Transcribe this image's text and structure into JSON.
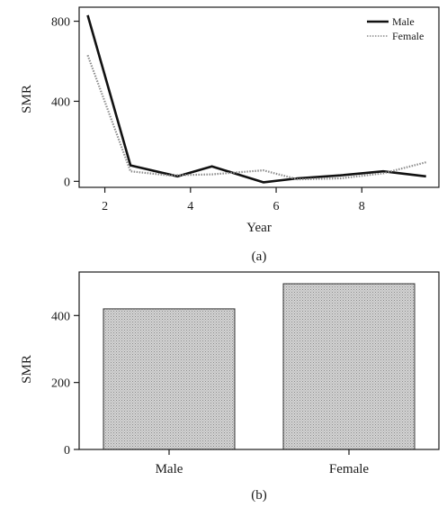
{
  "chart_data": [
    {
      "type": "line",
      "caption": "(a)",
      "xlabel": "Year",
      "ylabel": "SMR",
      "xlim": [
        1.4,
        9.8
      ],
      "ylim": [
        -30,
        870
      ],
      "xticks": [
        2,
        4,
        6,
        8
      ],
      "yticks": [
        0,
        400,
        800
      ],
      "grid": false,
      "legend_position": "top-right",
      "series": [
        {
          "name": "Male",
          "color": "#111111",
          "style": "solid",
          "x": [
            1.6,
            2.6,
            3.7,
            4.5,
            5.7,
            6.5,
            7.5,
            8.5,
            9.5
          ],
          "y": [
            830,
            80,
            25,
            75,
            -5,
            15,
            30,
            50,
            25
          ]
        },
        {
          "name": "Female",
          "color": "#8c8c8c",
          "style": "dotted",
          "x": [
            1.6,
            2.6,
            3.5,
            4.5,
            5.7,
            6.5,
            7.5,
            8.5,
            9.5
          ],
          "y": [
            630,
            50,
            30,
            35,
            55,
            10,
            15,
            40,
            95
          ]
        }
      ]
    },
    {
      "type": "bar",
      "caption": "(b)",
      "ylabel": "SMR",
      "categories": [
        "Male",
        "Female"
      ],
      "values": [
        420,
        495
      ],
      "ylim": [
        0,
        530
      ],
      "yticks": [
        0,
        200,
        400
      ],
      "grid": false,
      "bar_color": "#cfcfcf"
    }
  ]
}
